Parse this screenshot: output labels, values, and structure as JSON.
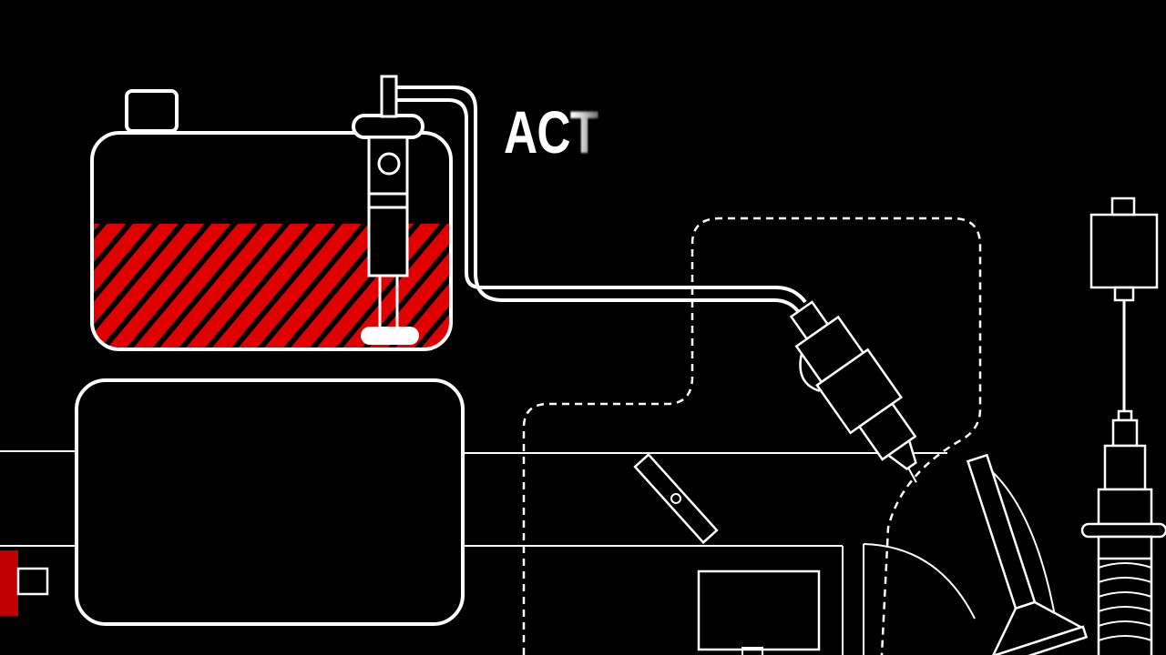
{
  "caption": {
    "solid_text": "AC",
    "fading_text": "T"
  },
  "colors": {
    "background": "#000000",
    "line": "#ffffff",
    "fuel": "#e00000",
    "accent_block": "#c00000"
  },
  "tank": {
    "fuel_level": 0.58
  },
  "icons": [
    "fuel-tank-icon",
    "fuel-pump-icon",
    "fuel-injector-icon",
    "throttle-valve-icon",
    "intake-valve-icon",
    "spark-plug-icon",
    "ignition-coil-icon"
  ]
}
